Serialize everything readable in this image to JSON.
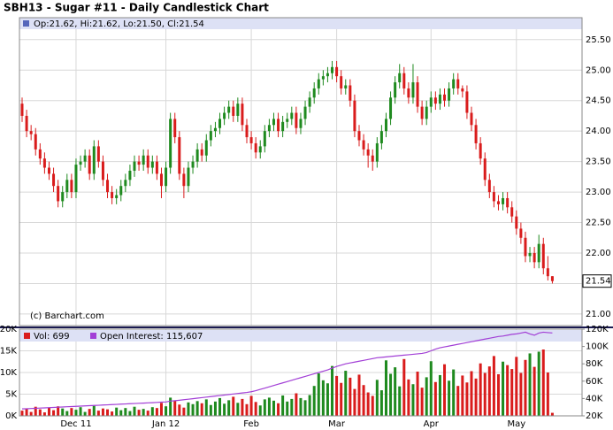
{
  "chart_data": {
    "type": "candlestick",
    "title": "SBH13 - Sugar #11 - Daily Candlestick Chart",
    "legend_text": "Op:21.62, Hi:21.62, Lo:21.50, Cl:21.54",
    "watermark": "(c) Barchart.com",
    "up_color": "#1f8a1f",
    "down_color": "#d91c1c",
    "grid": true,
    "categories": [
      null,
      null,
      null,
      null,
      null,
      null,
      null,
      null,
      null,
      null,
      null,
      null,
      "Dec 11",
      null,
      null,
      null,
      null,
      null,
      null,
      null,
      null,
      null,
      null,
      null,
      null,
      null,
      null,
      null,
      null,
      null,
      null,
      null,
      "Jan 12",
      null,
      null,
      null,
      null,
      null,
      null,
      null,
      null,
      null,
      null,
      null,
      null,
      null,
      null,
      null,
      null,
      null,
      null,
      "Feb",
      null,
      null,
      null,
      null,
      null,
      null,
      null,
      null,
      null,
      null,
      null,
      null,
      null,
      null,
      null,
      null,
      null,
      null,
      "Mar",
      null,
      null,
      null,
      null,
      null,
      null,
      null,
      null,
      null,
      null,
      null,
      null,
      null,
      null,
      null,
      null,
      null,
      null,
      null,
      null,
      "Apr",
      null,
      null,
      null,
      null,
      null,
      null,
      null,
      null,
      null,
      null,
      null,
      null,
      null,
      null,
      null,
      null,
      null,
      null,
      "May",
      null,
      null,
      null,
      null,
      null,
      null,
      null,
      null
    ],
    "open": [
      24.45,
      24.25,
      24.0,
      23.95,
      23.7,
      23.55,
      23.4,
      23.3,
      23.1,
      22.85,
      23.0,
      23.2,
      23.0,
      23.45,
      23.5,
      23.6,
      23.3,
      23.75,
      23.5,
      23.2,
      23.0,
      22.9,
      22.95,
      23.1,
      23.2,
      23.35,
      23.5,
      23.45,
      23.6,
      23.4,
      23.5,
      23.3,
      23.1,
      23.4,
      24.2,
      23.9,
      23.3,
      23.1,
      23.4,
      23.5,
      23.7,
      23.6,
      23.85,
      24.0,
      24.05,
      24.2,
      24.3,
      24.4,
      24.25,
      24.45,
      24.1,
      23.9,
      23.8,
      23.65,
      23.75,
      24.0,
      24.1,
      24.2,
      24.0,
      24.15,
      24.2,
      24.3,
      24.05,
      24.2,
      24.4,
      24.55,
      24.7,
      24.85,
      24.9,
      24.95,
      25.05,
      24.9,
      24.7,
      24.75,
      24.5,
      24.0,
      23.85,
      23.7,
      23.6,
      23.5,
      23.8,
      24.0,
      24.2,
      24.55,
      24.8,
      24.95,
      24.7,
      24.55,
      24.8,
      24.4,
      24.2,
      24.4,
      24.55,
      24.45,
      24.6,
      24.5,
      24.7,
      24.85,
      24.7,
      24.65,
      24.3,
      24.1,
      23.8,
      23.55,
      23.2,
      23.0,
      22.85,
      22.8,
      22.9,
      22.75,
      22.6,
      22.4,
      22.25,
      21.95,
      22.0,
      21.85,
      22.15,
      21.75,
      21.62
    ],
    "high": [
      24.55,
      24.35,
      24.1,
      24.05,
      23.8,
      23.65,
      23.5,
      23.4,
      23.2,
      23.1,
      23.3,
      23.3,
      23.55,
      23.6,
      23.7,
      23.7,
      23.85,
      23.85,
      23.6,
      23.3,
      23.1,
      23.05,
      23.2,
      23.3,
      23.45,
      23.6,
      23.6,
      23.7,
      23.7,
      23.6,
      23.6,
      23.4,
      23.5,
      24.3,
      24.3,
      24.0,
      23.4,
      23.5,
      23.6,
      23.8,
      23.8,
      23.95,
      24.1,
      24.15,
      24.3,
      24.4,
      24.5,
      24.5,
      24.55,
      24.55,
      24.2,
      24.0,
      23.9,
      23.85,
      24.1,
      24.2,
      24.3,
      24.3,
      24.25,
      24.3,
      24.4,
      24.4,
      24.3,
      24.5,
      24.65,
      24.8,
      24.95,
      25.0,
      25.05,
      25.15,
      25.15,
      25.0,
      24.85,
      24.85,
      24.6,
      24.1,
      23.95,
      23.8,
      23.7,
      23.9,
      24.1,
      24.3,
      24.65,
      24.9,
      25.1,
      25.05,
      24.8,
      25.1,
      24.9,
      24.5,
      24.5,
      24.65,
      24.65,
      24.7,
      24.7,
      24.8,
      24.95,
      24.95,
      24.75,
      24.75,
      24.4,
      24.2,
      23.9,
      23.65,
      23.3,
      23.1,
      22.95,
      23.0,
      23.0,
      22.85,
      22.7,
      22.5,
      22.35,
      22.1,
      22.1,
      22.3,
      22.25,
      21.95,
      21.62
    ],
    "low": [
      24.15,
      23.9,
      23.85,
      23.6,
      23.45,
      23.3,
      23.2,
      23.0,
      22.75,
      22.75,
      22.9,
      22.9,
      22.9,
      23.35,
      23.4,
      23.2,
      23.2,
      23.4,
      23.1,
      22.9,
      22.8,
      22.8,
      22.85,
      23.0,
      23.1,
      23.25,
      23.35,
      23.35,
      23.3,
      23.3,
      23.2,
      22.9,
      23.0,
      23.3,
      23.8,
      23.2,
      22.9,
      23.0,
      23.3,
      23.4,
      23.5,
      23.5,
      23.75,
      23.9,
      23.95,
      24.1,
      24.2,
      24.15,
      24.15,
      24.0,
      23.8,
      23.7,
      23.55,
      23.55,
      23.65,
      23.9,
      24.0,
      23.9,
      23.9,
      24.05,
      24.1,
      23.95,
      23.95,
      24.1,
      24.3,
      24.45,
      24.6,
      24.75,
      24.8,
      24.85,
      24.8,
      24.6,
      24.6,
      24.4,
      23.9,
      23.75,
      23.6,
      23.4,
      23.35,
      23.4,
      23.7,
      23.9,
      24.1,
      24.45,
      24.7,
      24.6,
      24.45,
      24.45,
      24.3,
      24.1,
      24.1,
      24.3,
      24.35,
      24.35,
      24.4,
      24.4,
      24.6,
      24.6,
      24.55,
      24.2,
      24.0,
      23.7,
      23.45,
      23.1,
      22.9,
      22.75,
      22.7,
      22.7,
      22.65,
      22.5,
      22.3,
      22.15,
      21.85,
      21.85,
      21.75,
      21.75,
      21.65,
      21.55,
      21.5
    ],
    "close": [
      24.25,
      24.0,
      23.95,
      23.7,
      23.55,
      23.4,
      23.3,
      23.1,
      22.85,
      23.0,
      23.2,
      23.0,
      23.45,
      23.5,
      23.6,
      23.3,
      23.75,
      23.5,
      23.2,
      23.0,
      22.9,
      22.95,
      23.1,
      23.2,
      23.35,
      23.5,
      23.45,
      23.6,
      23.4,
      23.5,
      23.3,
      23.1,
      23.4,
      24.2,
      23.9,
      23.3,
      23.1,
      23.4,
      23.5,
      23.7,
      23.6,
      23.85,
      24.0,
      24.05,
      24.2,
      24.3,
      24.4,
      24.25,
      24.45,
      24.1,
      23.9,
      23.8,
      23.65,
      23.75,
      24.0,
      24.1,
      24.2,
      24.0,
      24.15,
      24.2,
      24.3,
      24.05,
      24.2,
      24.4,
      24.55,
      24.7,
      24.85,
      24.9,
      24.95,
      25.05,
      24.9,
      24.7,
      24.75,
      24.5,
      24.0,
      23.85,
      23.7,
      23.6,
      23.5,
      23.8,
      24.0,
      24.2,
      24.55,
      24.8,
      24.95,
      24.7,
      24.55,
      24.8,
      24.4,
      24.2,
      24.4,
      24.55,
      24.45,
      24.6,
      24.5,
      24.7,
      24.85,
      24.7,
      24.65,
      24.3,
      24.1,
      23.8,
      23.55,
      23.2,
      23.0,
      22.85,
      22.8,
      22.9,
      22.75,
      22.6,
      22.4,
      22.25,
      21.95,
      22.0,
      21.85,
      22.15,
      21.75,
      21.62,
      21.54
    ],
    "ylim": [
      20.81,
      25.86
    ],
    "yticks": [
      {
        "value": 21,
        "label": "21.00"
      },
      {
        "value": 21.5,
        "label": "21.50"
      },
      {
        "value": 22,
        "label": "22.00"
      },
      {
        "value": 22.5,
        "label": "22.50"
      },
      {
        "value": 23,
        "label": "23.00"
      },
      {
        "value": 23.5,
        "label": "23.50"
      },
      {
        "value": 24,
        "label": "24.00"
      },
      {
        "value": 24.5,
        "label": "24.50"
      },
      {
        "value": 25,
        "label": "25.00"
      },
      {
        "value": 25.5,
        "label": "25.50"
      }
    ],
    "volume": {
      "legend": "Vol: 699",
      "values": [
        1200,
        1600,
        900,
        2100,
        1500,
        800,
        1900,
        1300,
        2200,
        1700,
        1100,
        1800,
        1400,
        2000,
        900,
        1600,
        2300,
        1200,
        1700,
        1500,
        1000,
        1900,
        1300,
        1800,
        1100,
        2100,
        1400,
        1600,
        1200,
        2000,
        1800,
        3000,
        2200,
        4200,
        3500,
        2600,
        1900,
        3100,
        2700,
        3400,
        2900,
        3800,
        2500,
        3300,
        4100,
        2800,
        3600,
        4400,
        3000,
        3900,
        2700,
        4600,
        3200,
        2400,
        3800,
        4200,
        3500,
        2900,
        4700,
        3300,
        3900,
        5200,
        4100,
        3600,
        4800,
        6900,
        9800,
        8200,
        7500,
        11500,
        9200,
        7600,
        10400,
        8800,
        6200,
        9500,
        7100,
        5400,
        4600,
        8300,
        5900,
        12800,
        9700,
        11200,
        6800,
        13100,
        8400,
        7300,
        10200,
        6500,
        8900,
        12600,
        7800,
        9400,
        11900,
        8100,
        10700,
        6900,
        9300,
        7700,
        10300,
        8600,
        12100,
        9900,
        11400,
        13800,
        9600,
        12500,
        11700,
        10800,
        13600,
        9900,
        12900,
        14400,
        11300,
        14800,
        15300,
        10000,
        699
      ],
      "ylim": [
        0,
        20000
      ],
      "yticks": [
        {
          "value": 0,
          "label": "0K"
        },
        {
          "value": 5000,
          "label": "5K"
        },
        {
          "value": 10000,
          "label": "10K"
        },
        {
          "value": 15000,
          "label": "15K"
        },
        {
          "value": 20000,
          "label": "20K"
        }
      ]
    },
    "open_interest": {
      "legend": "Open Interest: 115,607",
      "color": "#a23fd6",
      "values": [
        28000,
        28200,
        28500,
        28700,
        29000,
        29200,
        29500,
        29700,
        30000,
        30200,
        30500,
        30700,
        31000,
        31200,
        31500,
        31700,
        32000,
        32200,
        32500,
        32700,
        33000,
        33200,
        33500,
        33700,
        34000,
        34200,
        34500,
        34700,
        35000,
        35200,
        35500,
        35800,
        36000,
        37000,
        37500,
        38000,
        38600,
        39200,
        39800,
        40400,
        41000,
        41600,
        42200,
        42800,
        43400,
        44000,
        44600,
        45200,
        45800,
        46400,
        47000,
        47800,
        49000,
        50500,
        52000,
        53500,
        55000,
        56500,
        58000,
        59500,
        61000,
        62500,
        64000,
        65500,
        67000,
        68500,
        70000,
        71500,
        73000,
        75000,
        77000,
        78500,
        80000,
        81000,
        82000,
        83000,
        84000,
        85000,
        86000,
        87000,
        87500,
        88000,
        88500,
        89000,
        89500,
        90000,
        90500,
        91000,
        91500,
        92000,
        93000,
        95000,
        97000,
        98500,
        99500,
        100500,
        101500,
        102500,
        103500,
        104500,
        105500,
        106500,
        107500,
        108500,
        109500,
        110500,
        111500,
        112000,
        113000,
        114000,
        114500,
        115500,
        116500,
        114500,
        113000,
        115500,
        116500,
        116000,
        115607
      ],
      "ylim": [
        20000,
        120000
      ],
      "yticks": [
        {
          "value": 20000,
          "label": "20K"
        },
        {
          "value": 40000,
          "label": "40K"
        },
        {
          "value": 60000,
          "label": "60K"
        },
        {
          "value": 80000,
          "label": "80K"
        },
        {
          "value": 100000,
          "label": "100K"
        },
        {
          "value": 120000,
          "label": "120K"
        }
      ]
    }
  }
}
